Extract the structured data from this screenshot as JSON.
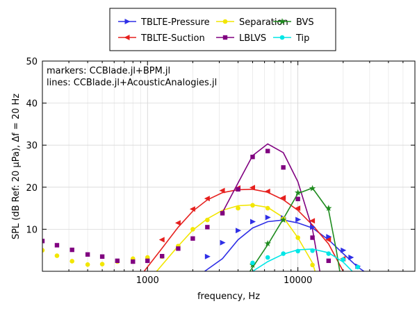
{
  "chart_data": {
    "type": "line",
    "xscale": "log",
    "xlim": [
      200,
      60000
    ],
    "ylim": [
      0,
      50
    ],
    "xlabel": "frequency, Hz",
    "ylabel": "SPL (dB Ref: 20 μPa), Δf = 20 Hz",
    "xticks": [
      1000,
      10000
    ],
    "xtick_labels": [
      "1000",
      "10000"
    ],
    "yticks": [
      10,
      20,
      30,
      40,
      50
    ],
    "ytick_labels": [
      "10",
      "20",
      "30",
      "40",
      "50"
    ],
    "grid": true,
    "legend_position": "top",
    "annotations": [
      "markers: CCBlade.jl+BPM.jl",
      "lines: CCBlade.jl+AcousticAnalogies.jl"
    ],
    "series": [
      {
        "name": "TBLTE-Pressure",
        "color": "#2f2fe6",
        "marker": "triangle-right",
        "line": [
          [
            2400,
            0
          ],
          [
            3150,
            3
          ],
          [
            4000,
            7.5
          ],
          [
            5000,
            10.3
          ],
          [
            6300,
            11.8
          ],
          [
            8000,
            12.2
          ],
          [
            10000,
            11.5
          ],
          [
            12500,
            10.3
          ],
          [
            16000,
            7.5
          ],
          [
            20000,
            4.2
          ],
          [
            25000,
            1
          ],
          [
            27500,
            0
          ]
        ],
        "points": [
          [
            2500,
            3.5
          ],
          [
            3150,
            6.8
          ],
          [
            4000,
            9.7
          ],
          [
            5000,
            11.8
          ],
          [
            6300,
            12.8
          ],
          [
            8000,
            12.7
          ],
          [
            10000,
            12.3
          ],
          [
            12500,
            10.5
          ],
          [
            16000,
            8.2
          ],
          [
            20000,
            5
          ],
          [
            22500,
            3.3
          ],
          [
            25000,
            1.2
          ]
        ]
      },
      {
        "name": "TBLTE-Suction",
        "color": "#e6201e",
        "marker": "triangle-left",
        "line": [
          [
            950,
            0
          ],
          [
            1250,
            5.5
          ],
          [
            1600,
            10.5
          ],
          [
            2000,
            14.3
          ],
          [
            2500,
            17
          ],
          [
            3150,
            18.7
          ],
          [
            4000,
            19.4
          ],
          [
            5000,
            19.5
          ],
          [
            6300,
            18.8
          ],
          [
            8000,
            17
          ],
          [
            10000,
            14.5
          ],
          [
            12500,
            11
          ],
          [
            16000,
            6.5
          ],
          [
            20000,
            0
          ]
        ],
        "points": [
          [
            1250,
            7.5
          ],
          [
            1600,
            11.5
          ],
          [
            2000,
            14.8
          ],
          [
            2500,
            17.3
          ],
          [
            3150,
            19.2
          ],
          [
            4000,
            19.8
          ],
          [
            5000,
            19.9
          ],
          [
            6300,
            19
          ],
          [
            8000,
            17.5
          ],
          [
            10000,
            15
          ],
          [
            12500,
            12
          ],
          [
            16000,
            7.5
          ],
          [
            20000,
            3
          ]
        ]
      },
      {
        "name": "Separation",
        "color": "#f2e600",
        "marker": "circle",
        "line": [
          [
            1150,
            0
          ],
          [
            1600,
            6
          ],
          [
            2000,
            9.8
          ],
          [
            2500,
            12.5
          ],
          [
            3150,
            14.5
          ],
          [
            4000,
            15.6
          ],
          [
            5000,
            15.8
          ],
          [
            6300,
            15.2
          ],
          [
            8000,
            12.8
          ],
          [
            10000,
            8
          ],
          [
            12500,
            2
          ],
          [
            13000,
            0
          ]
        ],
        "points": [
          [
            200,
            5
          ],
          [
            250,
            3.7
          ],
          [
            315,
            2.4
          ],
          [
            400,
            1.6
          ],
          [
            500,
            1.7
          ],
          [
            630,
            2.3
          ],
          [
            800,
            3
          ],
          [
            1000,
            3.3
          ],
          [
            1250,
            3.5
          ],
          [
            1600,
            6
          ],
          [
            2000,
            10
          ],
          [
            2500,
            12.2
          ],
          [
            3150,
            13.8
          ],
          [
            4000,
            15
          ],
          [
            5000,
            15.7
          ],
          [
            6300,
            15
          ],
          [
            8000,
            12.5
          ],
          [
            10000,
            8
          ],
          [
            12500,
            1.5
          ]
        ]
      },
      {
        "name": "LBLVS",
        "color": "#800080",
        "marker": "square",
        "line": [
          [
            3150,
            14
          ],
          [
            4000,
            21
          ],
          [
            5000,
            27.5
          ],
          [
            6300,
            30.3
          ],
          [
            8000,
            28.2
          ],
          [
            10000,
            21.3
          ],
          [
            12500,
            10
          ],
          [
            14000,
            0
          ]
        ],
        "points": [
          [
            200,
            7.2
          ],
          [
            250,
            6.2
          ],
          [
            315,
            5.1
          ],
          [
            400,
            4
          ],
          [
            500,
            3.5
          ],
          [
            630,
            2.5
          ],
          [
            800,
            2.3
          ],
          [
            1000,
            2.5
          ],
          [
            1250,
            3.6
          ],
          [
            1600,
            5.4
          ],
          [
            2000,
            7.8
          ],
          [
            2500,
            10.5
          ],
          [
            3150,
            13.8
          ],
          [
            4000,
            19.5
          ],
          [
            5000,
            27.2
          ],
          [
            6300,
            28.6
          ],
          [
            8000,
            24.7
          ],
          [
            10000,
            17.2
          ],
          [
            12500,
            8
          ],
          [
            16000,
            2.5
          ]
        ]
      },
      {
        "name": "BVS",
        "color": "#1f8c1f",
        "marker": "star",
        "line": [
          [
            4800,
            0
          ],
          [
            6300,
            6.3
          ],
          [
            8000,
            12.5
          ],
          [
            10000,
            18.5
          ],
          [
            12500,
            19.8
          ],
          [
            16000,
            14.5
          ],
          [
            18000,
            5
          ],
          [
            19000,
            0
          ]
        ],
        "points": [
          [
            5000,
            1.5
          ],
          [
            6300,
            6.6
          ],
          [
            8000,
            12.2
          ],
          [
            10000,
            18.7
          ],
          [
            12500,
            19.7
          ],
          [
            16000,
            15
          ]
        ]
      },
      {
        "name": "Tip",
        "color": "#00e6e6",
        "marker": "circle",
        "line": [
          [
            5000,
            0
          ],
          [
            6300,
            2.3
          ],
          [
            8000,
            4.1
          ],
          [
            10000,
            5.1
          ],
          [
            12500,
            5.3
          ],
          [
            16000,
            4.4
          ],
          [
            20000,
            2.2
          ],
          [
            23000,
            0
          ]
        ],
        "points": [
          [
            5000,
            2
          ],
          [
            6300,
            3.3
          ],
          [
            8000,
            4.2
          ],
          [
            10000,
            4.8
          ],
          [
            12500,
            4.9
          ],
          [
            16000,
            4.2
          ],
          [
            20000,
            2.8
          ],
          [
            25000,
            1
          ]
        ]
      }
    ]
  }
}
